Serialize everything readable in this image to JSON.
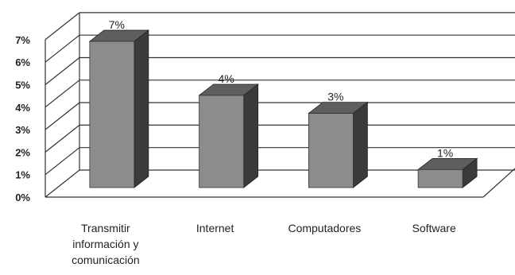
{
  "chart_data": {
    "type": "bar",
    "style": "3d-column",
    "categories": [
      [
        "Transmitir",
        "información y",
        "comunicación"
      ],
      [
        "Internet"
      ],
      [
        "Computadores"
      ],
      [
        "Software"
      ]
    ],
    "values": [
      6.5,
      4.1,
      3.3,
      0.8
    ],
    "data_labels": [
      "7%",
      "4%",
      "3%",
      "1%"
    ],
    "y_ticks": [
      "0%",
      "1%",
      "2%",
      "3%",
      "4%",
      "5%",
      "6%",
      "7%"
    ],
    "ylim": [
      0,
      7
    ],
    "grid": true,
    "legend": "none",
    "colors": {
      "bar_front": "#8c8c8c",
      "bar_side": "#3a3a3a",
      "bar_top": "#5e5e5e",
      "grid": "#333333",
      "text": "#222222"
    }
  }
}
